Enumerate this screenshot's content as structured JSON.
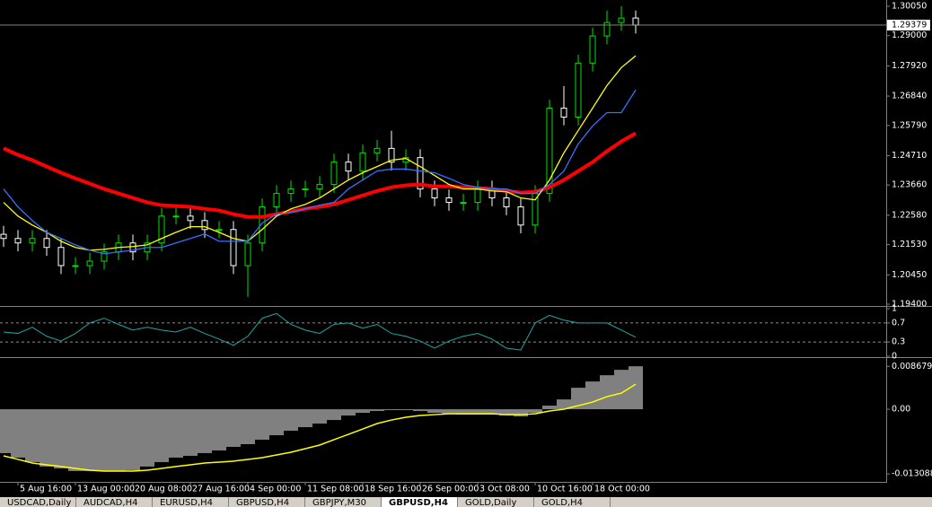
{
  "chart_data": [
    {
      "type": "candlestick",
      "categories": [
        null,
        "5 Aug 16:00",
        null,
        null,
        null,
        "13 Aug 00:00",
        null,
        null,
        null,
        "20 Aug 08:00",
        null,
        null,
        null,
        "27 Aug 16:00",
        null,
        null,
        null,
        "4 Sep 00:00",
        null,
        null,
        null,
        "11 Sep 08:00",
        null,
        null,
        null,
        "18 Sep 16:00",
        null,
        null,
        null,
        "26 Sep 00:00",
        null,
        null,
        null,
        "3 Oct 08:00",
        null,
        null,
        null,
        "10 Oct 16:00",
        null,
        null,
        null,
        "18 Oct 00:00",
        null,
        null,
        null
      ],
      "open": [
        1.219,
        1.2175,
        1.2159,
        1.2175,
        1.2143,
        1.2078,
        1.2078,
        1.2094,
        1.2127,
        1.2159,
        1.2127,
        1.2159,
        1.2255,
        1.2255,
        1.2239,
        1.2207,
        1.2207,
        1.2078,
        1.2159,
        1.2288,
        1.2336,
        1.2352,
        1.2352,
        1.2368,
        1.2448,
        1.2416,
        1.2481,
        1.2497,
        1.2448,
        1.2464,
        1.2352,
        1.232,
        1.2304,
        1.2304,
        1.2352,
        1.232,
        1.2288,
        1.2223,
        1.2336,
        1.2641,
        1.2609,
        1.2802,
        1.2899,
        1.2947,
        1.2963
      ],
      "high": [
        1.222,
        1.2205,
        1.2205,
        1.2205,
        1.2173,
        1.2108,
        1.2124,
        1.2157,
        1.2189,
        1.2189,
        1.2189,
        1.2285,
        1.2285,
        1.2285,
        1.2269,
        1.2237,
        1.2237,
        1.2189,
        1.2318,
        1.2366,
        1.2382,
        1.2382,
        1.2398,
        1.2478,
        1.2478,
        1.2511,
        1.2527,
        1.256,
        1.2494,
        1.2494,
        1.2382,
        1.235,
        1.2334,
        1.2382,
        1.2382,
        1.235,
        1.2318,
        1.2366,
        1.2671,
        1.272,
        1.2832,
        1.2929,
        1.299,
        1.3005,
        1.299
      ],
      "low": [
        1.2145,
        1.2129,
        1.2129,
        1.2113,
        1.2048,
        1.2048,
        1.2048,
        1.2064,
        1.2097,
        1.2097,
        1.2097,
        1.2129,
        1.2225,
        1.2209,
        1.2177,
        1.2177,
        1.2048,
        1.1966,
        1.2129,
        1.2258,
        1.2306,
        1.2322,
        1.2322,
        1.2338,
        1.2386,
        1.2386,
        1.2451,
        1.2418,
        1.2418,
        1.2322,
        1.229,
        1.2274,
        1.2274,
        1.2274,
        1.229,
        1.2258,
        1.2193,
        1.2193,
        1.2306,
        1.2579,
        1.2579,
        1.2772,
        1.2869,
        1.2917,
        1.2908
      ],
      "close": [
        1.2175,
        1.2159,
        1.2175,
        1.2143,
        1.2078,
        1.2078,
        1.2094,
        1.2127,
        1.2159,
        1.2127,
        1.2159,
        1.2255,
        1.2255,
        1.2239,
        1.2207,
        1.2207,
        1.2078,
        1.2159,
        1.2288,
        1.2336,
        1.2352,
        1.2352,
        1.2368,
        1.2448,
        1.2416,
        1.2481,
        1.2497,
        1.2448,
        1.2464,
        1.2352,
        1.232,
        1.2304,
        1.2304,
        1.2352,
        1.232,
        1.2288,
        1.2223,
        1.2336,
        1.2641,
        1.2609,
        1.2802,
        1.2899,
        1.2947,
        1.2963,
        1.2938
      ],
      "up_color": "#00e000",
      "down_color": "#ffffff",
      "series": [
        {
          "color": "#ff0000",
          "values": [
            1.2497,
            1.2474,
            1.2455,
            1.2432,
            1.241,
            1.239,
            1.2371,
            1.2352,
            1.2336,
            1.232,
            1.2304,
            1.2294,
            1.2291,
            1.2288,
            1.2281,
            1.2275,
            1.2262,
            1.2252,
            1.2252,
            1.2262,
            1.2271,
            1.2281,
            1.2288,
            1.2297,
            1.2313,
            1.2329,
            1.2345,
            1.2358,
            1.2365,
            1.2368,
            1.2361,
            1.2361,
            1.2358,
            1.2355,
            1.2352,
            1.2345,
            1.2339,
            1.2342,
            1.2358,
            1.2384,
            1.2416,
            1.2448,
            1.2487,
            1.2522,
            1.2551
          ]
        },
        {
          "color": "#ffff00",
          "values": [
            1.2304,
            1.2255,
            1.2223,
            1.2197,
            1.2165,
            1.2143,
            1.2133,
            1.2136,
            1.2143,
            1.2146,
            1.2152,
            1.2175,
            1.2197,
            1.2217,
            1.2217,
            1.2197,
            1.2175,
            1.2165,
            1.2207,
            1.2255,
            1.2281,
            1.2297,
            1.232,
            1.2352,
            1.2384,
            1.241,
            1.2432,
            1.2455,
            1.2461,
            1.2432,
            1.24,
            1.2368,
            1.2352,
            1.2352,
            1.2345,
            1.2342,
            1.232,
            1.2313,
            1.2384,
            1.2481,
            1.2561,
            1.2641,
            1.2722,
            1.2786,
            1.2828
          ]
        },
        {
          "color": "#3a6fff",
          "values": [
            1.2352,
            1.2288,
            1.2239,
            1.2197,
            1.2175,
            1.2152,
            1.2133,
            1.212,
            1.2127,
            1.2133,
            1.2143,
            1.2143,
            1.2159,
            1.2175,
            1.2191,
            1.2165,
            1.2165,
            1.2165,
            1.223,
            1.2262,
            1.2268,
            1.2281,
            1.2294,
            1.2304,
            1.2352,
            1.2384,
            1.2416,
            1.2423,
            1.2423,
            1.2416,
            1.241,
            1.239,
            1.2368,
            1.2358,
            1.2352,
            1.2352,
            1.2336,
            1.2336,
            1.2368,
            1.2416,
            1.2513,
            1.2577,
            1.2625,
            1.2625,
            1.2706
          ]
        }
      ],
      "last_price": 1.29379,
      "ylim": [
        1.19336,
        1.30275
      ],
      "yticks": [
        {
          "value": 1.3005,
          "label": "1.30050"
        },
        {
          "value": 1.29,
          "label": "1.29000"
        },
        {
          "value": 1.2792,
          "label": "1.27920"
        },
        {
          "value": 1.2684,
          "label": "1.26840"
        },
        {
          "value": 1.2579,
          "label": "1.25790"
        },
        {
          "value": 1.2471,
          "label": "1.24710"
        },
        {
          "value": 1.2366,
          "label": "1.23660"
        },
        {
          "value": 1.2258,
          "label": "1.22580"
        },
        {
          "value": 1.2153,
          "label": "1.21530"
        },
        {
          "value": 1.2045,
          "label": "1.20450"
        },
        {
          "value": 1.194,
          "label": "1.19400"
        }
      ]
    },
    {
      "type": "line",
      "values": [
        0.51,
        0.48,
        0.61,
        0.42,
        0.32,
        0.48,
        0.7,
        0.8,
        0.67,
        0.55,
        0.61,
        0.55,
        0.51,
        0.61,
        0.48,
        0.36,
        0.23,
        0.42,
        0.8,
        0.9,
        0.67,
        0.55,
        0.48,
        0.67,
        0.7,
        0.59,
        0.67,
        0.48,
        0.42,
        0.32,
        0.17,
        0.32,
        0.42,
        0.48,
        0.36,
        0.17,
        0.13,
        0.7,
        0.86,
        0.76,
        0.7,
        0.7,
        0.7,
        0.55,
        0.4
      ],
      "color": "#1fa7a7",
      "ylim": [
        0,
        1
      ],
      "yticks": [
        1,
        0.7,
        0.3,
        0
      ],
      "levels": [
        0.7,
        0.3
      ]
    },
    {
      "type": "bar",
      "values": [
        -0.00888,
        -0.00979,
        -0.0107,
        -0.0116,
        -0.01197,
        -0.01251,
        -0.01251,
        -0.01251,
        -0.01251,
        -0.01233,
        -0.0116,
        -0.0107,
        -0.00979,
        -0.00943,
        -0.00888,
        -0.00834,
        -0.00761,
        -0.00707,
        -0.00616,
        -0.00526,
        -0.00435,
        -0.00363,
        -0.0029,
        -0.00218,
        -0.00127,
        -0.00073,
        -0.00036,
        -0.00018,
        -0.00018,
        -0.00036,
        -0.00073,
        -0.00091,
        -0.00109,
        -0.00109,
        -0.00109,
        -0.00127,
        -0.00145,
        -0.00073,
        0.00073,
        0.00199,
        0.00435,
        0.00562,
        0.00689,
        0.00798,
        0.0087
      ],
      "color": "#808080",
      "series": [
        {
          "color": "#ffff00",
          "values": [
            -0.00943,
            -0.01015,
            -0.01088,
            -0.01124,
            -0.0116,
            -0.01197,
            -0.01233,
            -0.01251,
            -0.01251,
            -0.01251,
            -0.01233,
            -0.01197,
            -0.0116,
            -0.01124,
            -0.01088,
            -0.0107,
            -0.01051,
            -0.01015,
            -0.00979,
            -0.00925,
            -0.0087,
            -0.00798,
            -0.00725,
            -0.00616,
            -0.00508,
            -0.00399,
            -0.0029,
            -0.00218,
            -0.00163,
            -0.00127,
            -0.00109,
            -0.00091,
            -0.00091,
            -0.00091,
            -0.00091,
            -0.00109,
            -0.00109,
            -0.00091,
            -0.00036,
            0,
            0.00073,
            0.00145,
            0.00254,
            0.00326,
            0.00508
          ]
        }
      ],
      "ylim": [
        -0.0147,
        0.01
      ],
      "yticks": [
        0.008679,
        {
          "value": 0,
          "label": "0.00"
        },
        -0.013088
      ]
    }
  ],
  "tabs": [
    "USDCAD,Daily",
    "AUDCAD,H4",
    "EURUSD,H4",
    "GBPUSD,H4",
    "GBPJPY,M30",
    "GBPUSD,H4",
    "GOLD,Daily",
    "GOLD,H4"
  ],
  "active_tab": 5
}
